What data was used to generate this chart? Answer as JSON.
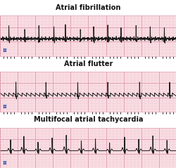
{
  "title1": "Atrial fibrillation",
  "title2": "Atrial flutter",
  "title3": "Multifocal atrial tachycardia",
  "bg_color": "#f9dde2",
  "grid_major_color": "#e0a0b0",
  "grid_minor_color": "#f0c8d4",
  "ecg_color": "#1a1a1a",
  "lead_label": "II",
  "fig_width": 2.51,
  "fig_height": 2.39,
  "dpi": 100,
  "title_fontsize": 7,
  "label_fontsize": 5
}
